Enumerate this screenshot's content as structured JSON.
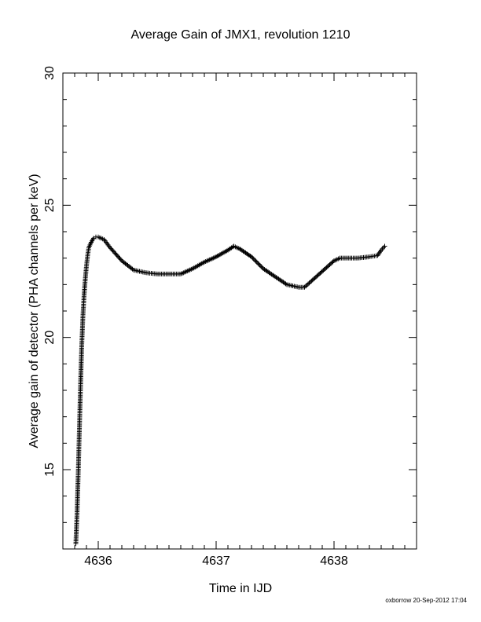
{
  "chart_data": {
    "type": "scatter",
    "title": "Average Gain of JMX1, revolution 1210",
    "xlabel": "Time in IJD",
    "ylabel": "Average gain of detector (PHA channels per keV)",
    "xlim": [
      4635.7,
      4638.7
    ],
    "ylim": [
      12.0,
      30.0
    ],
    "x_ticks": [
      "4636",
      "4637",
      "4638"
    ],
    "x_tick_values": [
      4636,
      4637,
      4638
    ],
    "y_ticks": [
      "15",
      "20",
      "25",
      "30"
    ],
    "y_tick_values": [
      15,
      20,
      25,
      30
    ],
    "marker": "+",
    "grid": false,
    "series": [
      {
        "color": "#000000",
        "x": [
          4635.81,
          4635.82,
          4635.83,
          4635.84,
          4635.85,
          4635.86,
          4635.87,
          4635.88,
          4635.89,
          4635.9,
          4635.91,
          4635.92,
          4635.94,
          4635.96,
          4635.98,
          4636.0,
          4636.05,
          4636.1,
          4636.2,
          4636.3,
          4636.4,
          4636.5,
          4636.6,
          4636.7,
          4636.8,
          4636.9,
          4637.0,
          4637.1,
          4637.15,
          4637.2,
          4637.3,
          4637.4,
          4637.5,
          4637.6,
          4637.7,
          4637.75,
          4637.8,
          4637.9,
          4638.0,
          4638.05,
          4638.1,
          4638.2,
          4638.3,
          4638.37,
          4638.4,
          4638.43
        ],
        "y": [
          12.2,
          13.3,
          14.8,
          16.5,
          18.2,
          19.7,
          20.8,
          21.6,
          22.2,
          22.7,
          23.1,
          23.4,
          23.6,
          23.75,
          23.8,
          23.8,
          23.7,
          23.4,
          22.9,
          22.55,
          22.45,
          22.4,
          22.4,
          22.4,
          22.6,
          22.85,
          23.05,
          23.3,
          23.45,
          23.35,
          23.05,
          22.6,
          22.3,
          22.0,
          21.9,
          21.9,
          22.1,
          22.5,
          22.9,
          23.0,
          23.0,
          23.0,
          23.05,
          23.1,
          23.3,
          23.45
        ]
      }
    ]
  },
  "footer": "oxborrow 20-Sep-2012 17:04"
}
